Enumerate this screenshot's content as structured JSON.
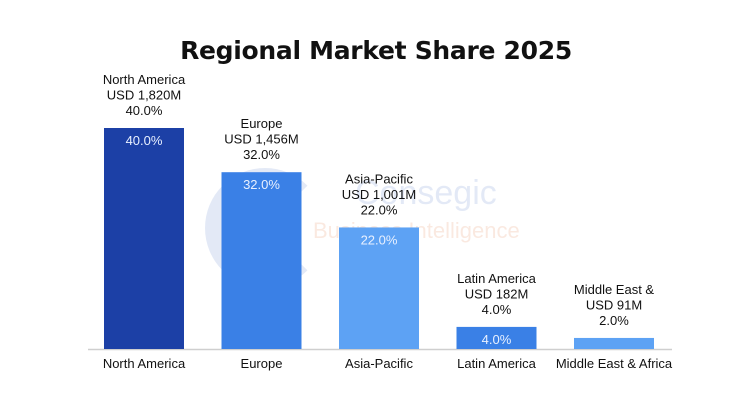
{
  "chart_data": {
    "type": "bar",
    "title": "Regional Market Share 2025",
    "categories": [
      "North America",
      "Europe",
      "Asia-Pacific",
      "Latin America",
      "Middle East & Africa"
    ],
    "values": [
      40.0,
      32.0,
      22.0,
      4.0,
      2.0
    ],
    "unit": "%",
    "annotations": [
      [
        "North America",
        "USD 1,820M",
        "40.0%"
      ],
      [
        "Europe",
        "USD 1,456M",
        "32.0%"
      ],
      [
        "Asia-Pacific",
        "USD 1,001M",
        "22.0%"
      ],
      [
        "Latin America",
        "USD 182M",
        "4.0%"
      ],
      [
        "Middle East &",
        "USD 91M",
        "2.0%"
      ]
    ],
    "inner_labels": [
      "40.0%",
      "32.0%",
      "22.0%",
      "4.0%",
      ""
    ],
    "colors": [
      "#1c40a6",
      "#3a80e6",
      "#5da2f4",
      "#3a80e6",
      "#5da2f4"
    ],
    "ylim": [
      0,
      40
    ],
    "grid": false,
    "legend": "none",
    "xlabel": "",
    "ylabel": ""
  },
  "watermark": {
    "line1": "Consegic",
    "line2": "Business Intelligence"
  }
}
